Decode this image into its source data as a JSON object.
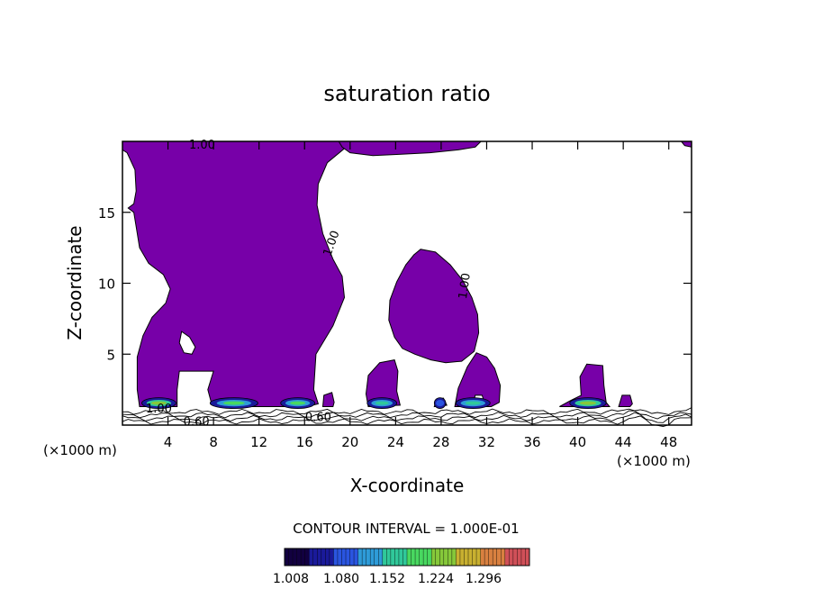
{
  "chart_data": {
    "type": "contour",
    "title": "saturation ratio",
    "xlabel": "X-coordinate",
    "ylabel": "Z-coordinate",
    "x_units": "(×1000 m)",
    "xlim": [
      0,
      50
    ],
    "ylim": [
      0,
      20
    ],
    "x_ticks": [
      4,
      8,
      12,
      16,
      20,
      24,
      28,
      32,
      36,
      40,
      44,
      48
    ],
    "y_ticks": [
      5,
      10,
      15
    ],
    "contour_interval_text": "CONTOUR INTERVAL = 1.000E-01",
    "contour_labels": [
      {
        "text": "1.00",
        "x": 7.0,
        "z": 19.7,
        "angle": 0
      },
      {
        "text": "1.00",
        "x": 18.4,
        "z": 12.8,
        "angle": -70
      },
      {
        "text": "1.00",
        "x": 30.1,
        "z": 9.8,
        "angle": -82
      },
      {
        "text": "1.00",
        "x": 3.2,
        "z": 1.1,
        "angle": 0
      },
      {
        "text": "0.60",
        "x": 6.5,
        "z": 0.2,
        "angle": 0
      },
      {
        "text": "0.60",
        "x": 17.2,
        "z": 0.5,
        "angle": 0
      }
    ],
    "colorbar": {
      "tick_labels": [
        "1.008",
        "1.080",
        "1.152",
        "1.224",
        "1.296"
      ],
      "min": 1.008,
      "max": 1.33,
      "colors": [
        "#120040",
        "#1a1a9a",
        "#2a55e0",
        "#2e9bd8",
        "#30c89a",
        "#48d860",
        "#86c83a",
        "#c8b030",
        "#d88040",
        "#d05058"
      ]
    },
    "fill_color": "#7700a8",
    "saturated_regions": [
      {
        "name": "large-plume",
        "points": [
          [
            0,
            20
          ],
          [
            19,
            20
          ],
          [
            19.5,
            19.5
          ],
          [
            18,
            18.5
          ],
          [
            17.2,
            17
          ],
          [
            17.1,
            15.5
          ],
          [
            17.6,
            13.5
          ],
          [
            18.5,
            11.7
          ],
          [
            19.3,
            10.5
          ],
          [
            19.5,
            9
          ],
          [
            18.5,
            7
          ],
          [
            17,
            5
          ],
          [
            16.8,
            2.5
          ],
          [
            17.2,
            1.5
          ],
          [
            16.2,
            1.3
          ],
          [
            13.5,
            1.3
          ],
          [
            11.5,
            1.3
          ],
          [
            9,
            1.3
          ],
          [
            7.8,
            1.6
          ],
          [
            7.5,
            2.5
          ],
          [
            8,
            3.8
          ],
          [
            5,
            3.8
          ],
          [
            4.8,
            2.5
          ],
          [
            4.8,
            1.3
          ],
          [
            1.5,
            1.3
          ],
          [
            1.3,
            2.5
          ],
          [
            1.3,
            4.8
          ],
          [
            1.8,
            6.3
          ],
          [
            2.6,
            7.6
          ],
          [
            3.8,
            8.6
          ],
          [
            4.2,
            9.6
          ],
          [
            3.6,
            10.6
          ],
          [
            2.3,
            11.4
          ],
          [
            1.5,
            12.5
          ],
          [
            1.2,
            14
          ],
          [
            1,
            15
          ],
          [
            0.5,
            15.3
          ],
          [
            1,
            15.6
          ],
          [
            1.2,
            16.5
          ],
          [
            1.1,
            18
          ],
          [
            0.4,
            19.2
          ],
          [
            0,
            19.4
          ]
        ]
      },
      {
        "name": "upper-strip",
        "points": [
          [
            19,
            20
          ],
          [
            31.5,
            20
          ],
          [
            31,
            19.6
          ],
          [
            29.5,
            19.4
          ],
          [
            27,
            19.2
          ],
          [
            24.5,
            19.1
          ],
          [
            22,
            19
          ],
          [
            20,
            19.2
          ],
          [
            19.3,
            19.6
          ]
        ]
      },
      {
        "name": "mid-blob",
        "points": [
          [
            26.2,
            12.4
          ],
          [
            27.5,
            12.2
          ],
          [
            28.8,
            11.3
          ],
          [
            29.9,
            10.2
          ],
          [
            30.7,
            9
          ],
          [
            31.2,
            7.8
          ],
          [
            31.3,
            6.5
          ],
          [
            30.9,
            5.2
          ],
          [
            29.8,
            4.5
          ],
          [
            28.4,
            4.4
          ],
          [
            27.1,
            4.6
          ],
          [
            25.7,
            5
          ],
          [
            24.6,
            5.4
          ],
          [
            23.9,
            6.2
          ],
          [
            23.4,
            7.4
          ],
          [
            23.5,
            8.8
          ],
          [
            24.1,
            10.1
          ],
          [
            24.9,
            11.3
          ],
          [
            25.6,
            12
          ]
        ]
      },
      {
        "name": "blob-22",
        "points": [
          [
            21.6,
            1.3
          ],
          [
            21.4,
            2.2
          ],
          [
            21.6,
            3.5
          ],
          [
            22.6,
            4.4
          ],
          [
            23.9,
            4.6
          ],
          [
            24.2,
            3.8
          ],
          [
            24.1,
            2.4
          ],
          [
            24.4,
            1.4
          ]
        ]
      },
      {
        "name": "blob-30",
        "points": [
          [
            29.2,
            1.3
          ],
          [
            29.5,
            2.6
          ],
          [
            30.3,
            4.1
          ],
          [
            31.1,
            5.1
          ],
          [
            32,
            4.8
          ],
          [
            32.7,
            4
          ],
          [
            33.2,
            2.8
          ],
          [
            33.1,
            1.6
          ],
          [
            32.4,
            1.3
          ]
        ]
      },
      {
        "name": "blob-41",
        "points": [
          [
            38.4,
            1.3
          ],
          [
            39.3,
            1.7
          ],
          [
            40.3,
            2.1
          ],
          [
            40.2,
            3.4
          ],
          [
            40.8,
            4.3
          ],
          [
            42.2,
            4.2
          ],
          [
            42.3,
            2.8
          ],
          [
            42.5,
            1.6
          ],
          [
            42.8,
            1.3
          ]
        ]
      },
      {
        "name": "blob-27",
        "points": [
          [
            27.4,
            1.3
          ],
          [
            27.6,
            1.8
          ],
          [
            28.2,
            1.9
          ],
          [
            28.5,
            1.4
          ]
        ]
      },
      {
        "name": "blob-19",
        "points": [
          [
            17.6,
            1.3
          ],
          [
            17.7,
            2.1
          ],
          [
            18.4,
            2.3
          ],
          [
            18.6,
            1.6
          ],
          [
            18.5,
            1.3
          ]
        ]
      },
      {
        "name": "blob-43",
        "points": [
          [
            43.6,
            1.3
          ],
          [
            43.9,
            2.1
          ],
          [
            44.6,
            2.1
          ],
          [
            44.8,
            1.5
          ],
          [
            44.6,
            1.3
          ]
        ]
      },
      {
        "name": "corner-49",
        "points": [
          [
            49.1,
            20
          ],
          [
            50,
            20
          ],
          [
            50,
            19.6
          ],
          [
            49.4,
            19.7
          ]
        ]
      }
    ],
    "unsaturated_holes": [
      {
        "name": "hole-5",
        "points": [
          [
            5.2,
            6.6
          ],
          [
            5.9,
            6.2
          ],
          [
            6.4,
            5.5
          ],
          [
            6.1,
            5
          ],
          [
            5.4,
            5.1
          ],
          [
            5,
            5.8
          ]
        ]
      },
      {
        "name": "hole-31",
        "points": [
          [
            30.8,
            1.5
          ],
          [
            31,
            2.1
          ],
          [
            31.6,
            2.1
          ],
          [
            31.8,
            1.6
          ]
        ]
      }
    ],
    "hotspots": [
      {
        "x": 3.2,
        "width": 3.0,
        "intensity": 1.22
      },
      {
        "x": 9.8,
        "width": 4.2,
        "intensity": 1.2
      },
      {
        "x": 15.4,
        "width": 3.0,
        "intensity": 1.2
      },
      {
        "x": 22.8,
        "width": 2.6,
        "intensity": 1.15
      },
      {
        "x": 30.8,
        "width": 3.0,
        "intensity": 1.15
      },
      {
        "x": 40.9,
        "width": 3.2,
        "intensity": 1.22
      },
      {
        "x": 27.9,
        "width": 1.0,
        "intensity": 1.09
      }
    ],
    "surface_contours": [
      0.6,
      0.7,
      0.8,
      0.9
    ]
  }
}
